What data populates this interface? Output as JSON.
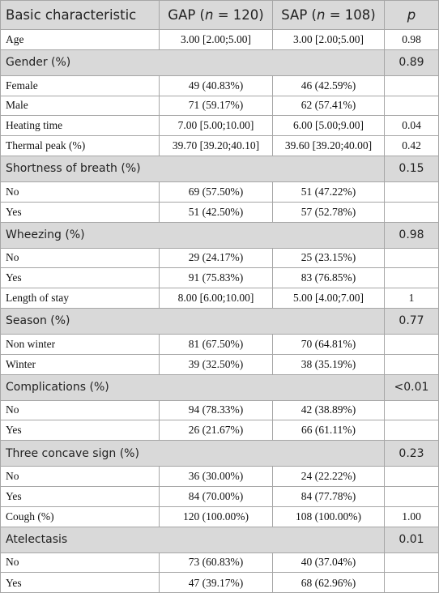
{
  "table": {
    "header": {
      "characteristic": "Basic characteristic",
      "gap": [
        "GAP (",
        "n",
        " = 120)"
      ],
      "sap": [
        "SAP (",
        "n",
        " = 108)"
      ],
      "p": "p"
    },
    "rows": [
      {
        "label": "Age",
        "gap": "3.00 [2.00;5.00]",
        "sap": "3.00 [2.00;5.00]",
        "p": "0.98"
      },
      {
        "heading": "Gender (%)",
        "p": "0.89"
      },
      {
        "label": "Female",
        "gap": "49 (40.83%)",
        "sap": "46 (42.59%)"
      },
      {
        "label": "Male",
        "gap": "71 (59.17%)",
        "sap": "62 (57.41%)"
      },
      {
        "label": "Heating time",
        "gap": "7.00 [5.00;10.00]",
        "sap": "6.00 [5.00;9.00]",
        "p": "0.04"
      },
      {
        "label": "Thermal peak (%)",
        "gap": "39.70 [39.20;40.10]",
        "sap": "39.60 [39.20;40.00]",
        "p": "0.42"
      },
      {
        "heading": "Shortness of breath (%)",
        "p": "0.15"
      },
      {
        "label": "No",
        "gap": "69 (57.50%)",
        "sap": "51 (47.22%)"
      },
      {
        "label": "Yes",
        "gap": "51 (42.50%)",
        "sap": "57 (52.78%)"
      },
      {
        "heading": "Wheezing (%)",
        "p": "0.98"
      },
      {
        "label": "No",
        "gap": "29 (24.17%)",
        "sap": "25 (23.15%)"
      },
      {
        "label": "Yes",
        "gap": "91 (75.83%)",
        "sap": "83 (76.85%)"
      },
      {
        "label": "Length of stay",
        "gap": "8.00 [6.00;10.00]",
        "sap": "5.00 [4.00;7.00]",
        "p": "1"
      },
      {
        "heading": "Season (%)",
        "p": "0.77"
      },
      {
        "label": "Non winter",
        "gap": "81 (67.50%)",
        "sap": "70 (64.81%)"
      },
      {
        "label": "Winter",
        "gap": "39 (32.50%)",
        "sap": "38 (35.19%)"
      },
      {
        "heading": "Complications (%)",
        "p": "<0.01"
      },
      {
        "label": "No",
        "gap": "94 (78.33%)",
        "sap": "42 (38.89%)"
      },
      {
        "label": "Yes",
        "gap": "26 (21.67%)",
        "sap": "66 (61.11%)"
      },
      {
        "heading": "Three concave sign (%)",
        "p": "0.23"
      },
      {
        "label": "No",
        "gap": "36 (30.00%)",
        "sap": "24 (22.22%)"
      },
      {
        "label": "Yes",
        "gap": "84 (70.00%)",
        "sap": "84 (77.78%)"
      },
      {
        "label": "Cough (%)",
        "gap": "120 (100.00%)",
        "sap": "108 (100.00%)",
        "p": "1.00"
      },
      {
        "heading": "Atelectasis",
        "p": "0.01"
      },
      {
        "label": "No",
        "gap": "73 (60.83%)",
        "sap": "40 (37.04%)"
      },
      {
        "label": "Yes",
        "gap": "47 (39.17%)",
        "sap": "68 (62.96%)"
      }
    ]
  }
}
